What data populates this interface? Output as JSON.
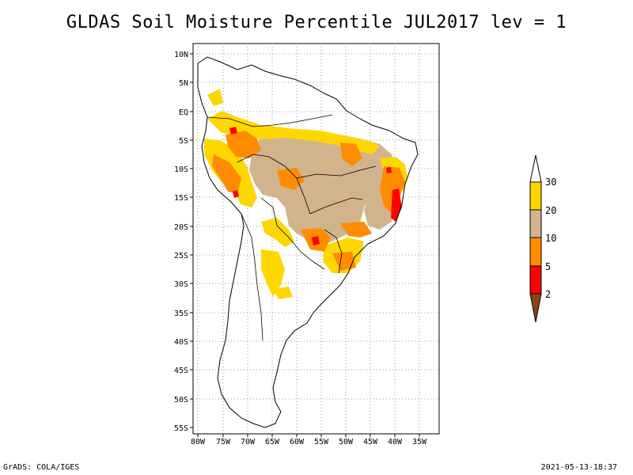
{
  "title": "GLDAS Soil Moisture Percentile JUL2017 lev = 1",
  "footer": {
    "left": "GrADS: COLA/IGES",
    "right": "2021-05-13-18:37"
  },
  "map": {
    "lat_labels": [
      "10N",
      "5N",
      "EQ",
      "5S",
      "10S",
      "15S",
      "20S",
      "25S",
      "30S",
      "35S",
      "40S",
      "45S",
      "50S",
      "55S"
    ],
    "lon_labels": [
      "80W",
      "75W",
      "70W",
      "65W",
      "60W",
      "55W",
      "50W",
      "45W",
      "40W",
      "35W"
    ]
  },
  "legend": {
    "labels": [
      "30",
      "20",
      "10",
      "5",
      "2"
    ],
    "colors": {
      "yellow": "#FFD700",
      "tan": "#D2B48C",
      "orange": "#FF8C00",
      "red": "#FF0000",
      "brown": "#8B4513"
    }
  }
}
